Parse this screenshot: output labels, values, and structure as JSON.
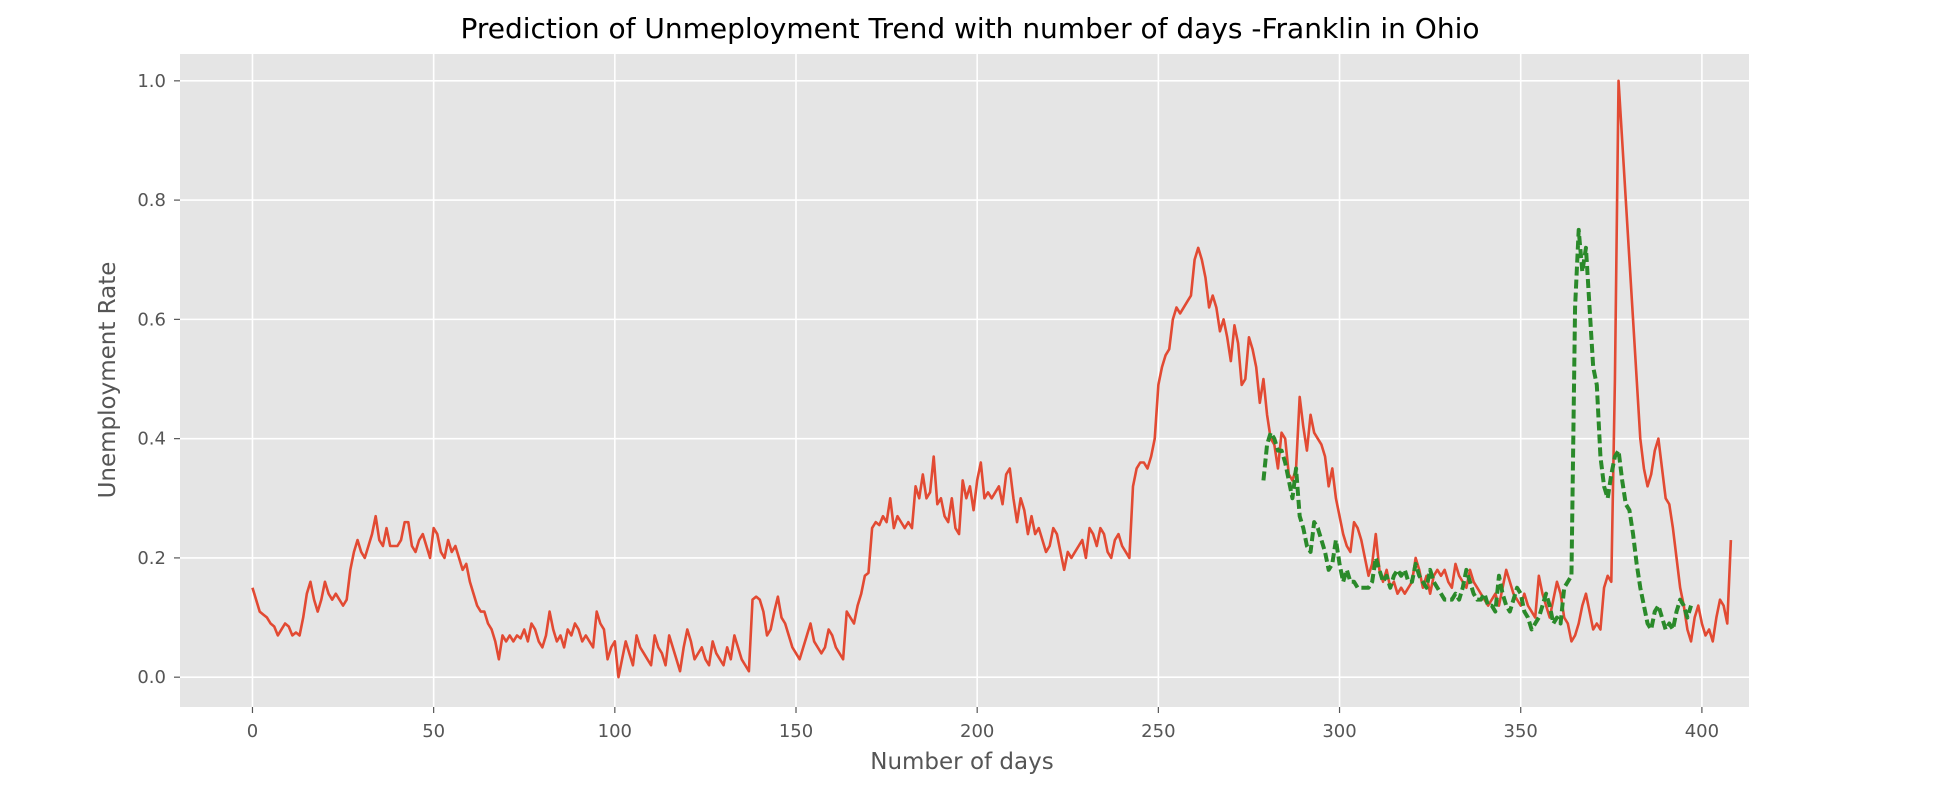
{
  "chart_data": {
    "type": "line",
    "title": "Prediction of Unmeployment Trend with number of days -Franklin in Ohio",
    "xlabel": "Number of days",
    "ylabel": "Unemployment Rate",
    "xlim": [
      -20,
      413
    ],
    "ylim": [
      -0.05,
      1.045
    ],
    "grid": true,
    "style": "ggplot",
    "x_ticks": [
      0,
      50,
      100,
      150,
      200,
      250,
      300,
      350,
      400
    ],
    "x_tick_labels": [
      "0",
      "50",
      "100",
      "150",
      "200",
      "250",
      "300",
      "350",
      "400"
    ],
    "y_ticks": [
      0.0,
      0.2,
      0.4,
      0.6,
      0.8,
      1.0
    ],
    "y_tick_labels": [
      "0.0",
      "0.2",
      "0.4",
      "0.6",
      "0.8",
      "1.0"
    ],
    "colors": {
      "background": "#e5e5e5",
      "grid": "#ffffff",
      "actual": "#e24a33",
      "predicted": "#2a8a2a"
    },
    "series": [
      {
        "key": "actual",
        "style": "solid",
        "x_start": 0,
        "values": [
          0.15,
          0.13,
          0.11,
          0.105,
          0.1,
          0.09,
          0.085,
          0.07,
          0.08,
          0.09,
          0.085,
          0.07,
          0.075,
          0.07,
          0.1,
          0.14,
          0.16,
          0.13,
          0.11,
          0.13,
          0.16,
          0.14,
          0.13,
          0.14,
          0.13,
          0.12,
          0.13,
          0.18,
          0.21,
          0.23,
          0.21,
          0.2,
          0.22,
          0.24,
          0.27,
          0.23,
          0.22,
          0.25,
          0.22,
          0.22,
          0.22,
          0.23,
          0.26,
          0.26,
          0.22,
          0.21,
          0.23,
          0.24,
          0.22,
          0.2,
          0.25,
          0.24,
          0.21,
          0.2,
          0.23,
          0.21,
          0.22,
          0.2,
          0.18,
          0.19,
          0.16,
          0.14,
          0.12,
          0.11,
          0.11,
          0.09,
          0.08,
          0.06,
          0.03,
          0.07,
          0.06,
          0.07,
          0.06,
          0.07,
          0.065,
          0.08,
          0.06,
          0.09,
          0.08,
          0.06,
          0.05,
          0.07,
          0.11,
          0.08,
          0.06,
          0.07,
          0.05,
          0.08,
          0.07,
          0.09,
          0.08,
          0.06,
          0.07,
          0.06,
          0.05,
          0.11,
          0.09,
          0.08,
          0.03,
          0.05,
          0.06,
          0.0,
          0.03,
          0.06,
          0.04,
          0.02,
          0.07,
          0.05,
          0.04,
          0.03,
          0.02,
          0.07,
          0.05,
          0.04,
          0.02,
          0.07,
          0.05,
          0.03,
          0.01,
          0.05,
          0.08,
          0.06,
          0.03,
          0.04,
          0.05,
          0.03,
          0.02,
          0.06,
          0.04,
          0.03,
          0.02,
          0.05,
          0.03,
          0.07,
          0.05,
          0.03,
          0.02,
          0.01,
          0.13,
          0.135,
          0.13,
          0.11,
          0.07,
          0.08,
          0.11,
          0.135,
          0.1,
          0.09,
          0.07,
          0.05,
          0.04,
          0.03,
          0.05,
          0.07,
          0.09,
          0.06,
          0.05,
          0.04,
          0.05,
          0.08,
          0.07,
          0.05,
          0.04,
          0.03,
          0.11,
          0.1,
          0.09,
          0.12,
          0.14,
          0.17,
          0.175,
          0.25,
          0.26,
          0.255,
          0.27,
          0.26,
          0.3,
          0.25,
          0.27,
          0.26,
          0.25,
          0.26,
          0.25,
          0.32,
          0.3,
          0.34,
          0.3,
          0.31,
          0.37,
          0.29,
          0.3,
          0.27,
          0.26,
          0.3,
          0.25,
          0.24,
          0.33,
          0.3,
          0.32,
          0.28,
          0.33,
          0.36,
          0.3,
          0.31,
          0.3,
          0.31,
          0.32,
          0.29,
          0.34,
          0.35,
          0.3,
          0.26,
          0.3,
          0.28,
          0.24,
          0.27,
          0.24,
          0.25,
          0.23,
          0.21,
          0.22,
          0.25,
          0.24,
          0.21,
          0.18,
          0.21,
          0.2,
          0.21,
          0.22,
          0.23,
          0.2,
          0.25,
          0.24,
          0.22,
          0.25,
          0.24,
          0.21,
          0.2,
          0.23,
          0.24,
          0.22,
          0.21,
          0.2,
          0.32,
          0.35,
          0.36,
          0.36,
          0.35,
          0.37,
          0.4,
          0.49,
          0.52,
          0.54,
          0.55,
          0.6,
          0.62,
          0.61,
          0.62,
          0.63,
          0.64,
          0.7,
          0.72,
          0.7,
          0.67,
          0.62,
          0.64,
          0.62,
          0.58,
          0.6,
          0.57,
          0.53,
          0.59,
          0.56,
          0.49,
          0.5,
          0.57,
          0.55,
          0.52,
          0.46,
          0.5,
          0.44,
          0.4,
          0.39,
          0.35,
          0.41,
          0.4,
          0.34,
          0.33,
          0.35,
          0.47,
          0.42,
          0.38,
          0.44,
          0.41,
          0.4,
          0.39,
          0.37,
          0.32,
          0.35,
          0.3,
          0.27,
          0.24,
          0.22,
          0.21,
          0.26,
          0.25,
          0.23,
          0.2,
          0.17,
          0.19,
          0.24,
          0.18,
          0.16,
          0.18,
          0.15,
          0.16,
          0.14,
          0.15,
          0.14,
          0.15,
          0.16,
          0.2,
          0.18,
          0.15,
          0.17,
          0.14,
          0.17,
          0.18,
          0.17,
          0.18,
          0.16,
          0.15,
          0.19,
          0.17,
          0.16,
          0.15,
          0.18,
          0.16,
          0.15,
          0.14,
          0.13,
          0.12,
          0.13,
          0.14,
          0.12,
          0.15,
          0.18,
          0.16,
          0.14,
          0.13,
          0.12,
          0.14,
          0.12,
          0.11,
          0.1,
          0.17,
          0.14,
          0.12,
          0.1,
          0.13,
          0.16,
          0.14,
          0.1,
          0.09,
          0.06,
          0.07,
          0.09,
          0.12,
          0.14,
          0.11,
          0.08,
          0.09,
          0.08,
          0.15,
          0.17,
          0.16,
          0.5,
          1.0,
          0.9,
          0.8,
          0.7,
          0.6,
          0.5,
          0.4,
          0.35,
          0.32,
          0.34,
          0.38,
          0.4,
          0.35,
          0.3,
          0.29,
          0.25,
          0.2,
          0.15,
          0.12,
          0.08,
          0.06,
          0.1,
          0.12,
          0.09,
          0.07,
          0.08,
          0.06,
          0.1,
          0.13,
          0.12,
          0.09,
          0.23
        ]
      },
      {
        "key": "predicted",
        "style": "dashed",
        "x_start": 279,
        "values": [
          0.33,
          0.39,
          0.41,
          0.4,
          0.38,
          0.38,
          0.36,
          0.33,
          0.3,
          0.35,
          0.27,
          0.25,
          0.22,
          0.21,
          0.26,
          0.25,
          0.23,
          0.21,
          0.18,
          0.19,
          0.23,
          0.19,
          0.16,
          0.18,
          0.16,
          0.16,
          0.15,
          0.15,
          0.15,
          0.15,
          0.16,
          0.2,
          0.18,
          0.16,
          0.17,
          0.15,
          0.17,
          0.18,
          0.17,
          0.18,
          0.16,
          0.16,
          0.19,
          0.17,
          0.16,
          0.15,
          0.18,
          0.16,
          0.15,
          0.14,
          0.13,
          0.13,
          0.13,
          0.14,
          0.13,
          0.15,
          0.18,
          0.16,
          0.14,
          0.13,
          0.13,
          0.14,
          0.12,
          0.12,
          0.11,
          0.17,
          0.14,
          0.12,
          0.11,
          0.13,
          0.15,
          0.14,
          0.11,
          0.1,
          0.08,
          0.09,
          0.1,
          0.12,
          0.14,
          0.12,
          0.09,
          0.1,
          0.09,
          0.15,
          0.16,
          0.17,
          0.62,
          0.75,
          0.68,
          0.72,
          0.62,
          0.52,
          0.49,
          0.37,
          0.32,
          0.3,
          0.34,
          0.37,
          0.38,
          0.33,
          0.29,
          0.28,
          0.24,
          0.19,
          0.15,
          0.12,
          0.09,
          0.08,
          0.11,
          0.12,
          0.1,
          0.08,
          0.09,
          0.08,
          0.11,
          0.13,
          0.12,
          0.1,
          0.12
        ]
      }
    ]
  }
}
